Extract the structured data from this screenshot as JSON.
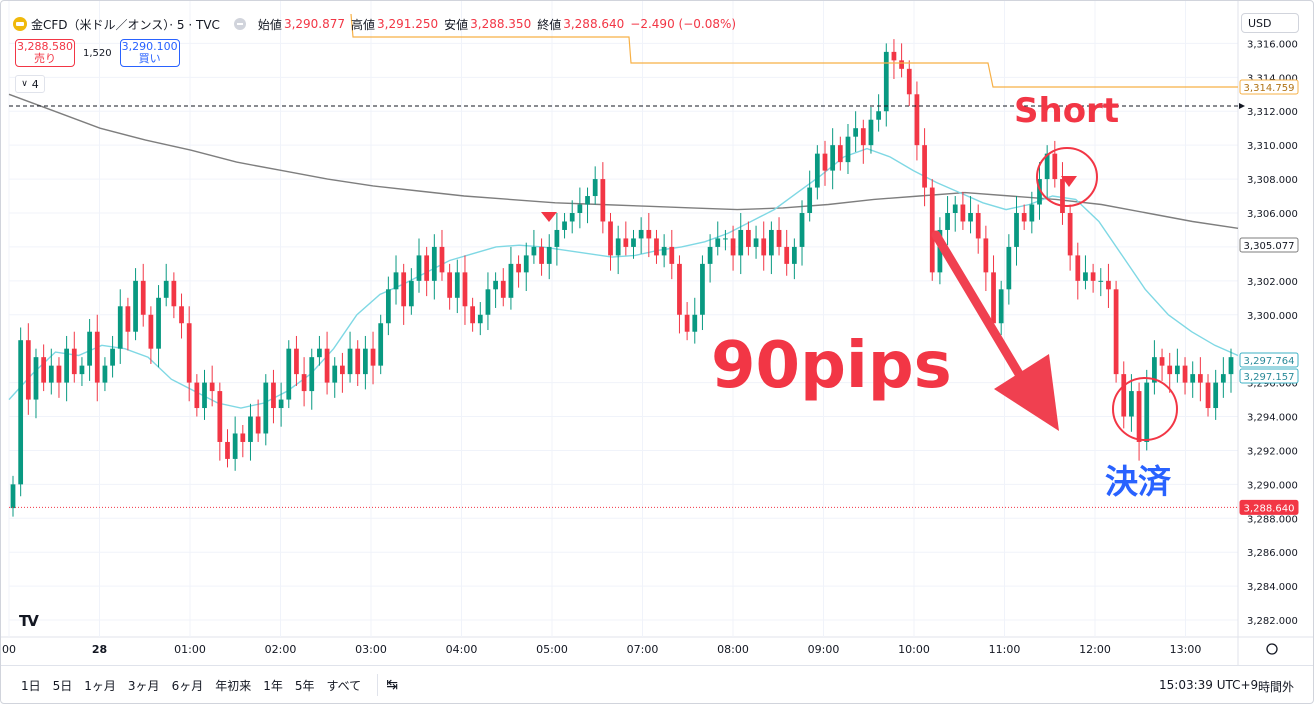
{
  "header": {
    "symbol": "金CFD（米ドル／オンス）· 5 · TVC",
    "open_label": "始値",
    "open": "3,290.877",
    "high_label": "高値",
    "high": "3,291.250",
    "low_label": "安値",
    "low": "3,288.350",
    "close_label": "終値",
    "close": "3,288.640",
    "change": "−2.490 (−0.08%)"
  },
  "trade": {
    "sell_price": "3,288.580",
    "sell_label": "売り",
    "spread": "1,520",
    "buy_price": "3,290.100",
    "buy_label": "買い"
  },
  "indicator_count": "4",
  "currency": "USD",
  "colors": {
    "up": "#089981",
    "down": "#f23645",
    "ema": "#7fd8e4",
    "sma": "#7e7e7e",
    "level": "#f7b046"
  },
  "price_axis": {
    "ticks": [
      "3,316.000",
      "3,314.000",
      "3,312.000",
      "3,310.000",
      "3,308.000",
      "3,306.000",
      "3,304.000",
      "3,302.000",
      "3,300.000",
      "3,296.000",
      "3,294.000",
      "3,292.000",
      "3,290.000",
      "3,288.000",
      "3,286.000",
      "3,284.000",
      "3,282.000"
    ],
    "labels": {
      "orange": "3,314.759",
      "gray": "3,305.077",
      "teal1": "3,297.764",
      "teal2": "3,297.157",
      "price": "3,288.640"
    }
  },
  "time_axis": [
    "00",
    "28",
    "01:00",
    "02:00",
    "03:00",
    "04:00",
    "05:00",
    "07:00",
    "08:00",
    "09:00",
    "10:00",
    "11:00",
    "12:00",
    "13:00"
  ],
  "annotations": {
    "short": "Short",
    "pips": "90pips",
    "settle": "決済"
  },
  "bottom": {
    "ranges": [
      "1日",
      "5日",
      "1ヶ月",
      "3ヶ月",
      "6ヶ月",
      "年初来",
      "1年",
      "5年",
      "すべて"
    ],
    "clock": "15:03:39 UTC+9",
    "session": "時間外"
  },
  "chart_data": {
    "type": "candlestick",
    "ylim": [
      3281,
      3318.5
    ],
    "series": [
      {
        "name": "price",
        "values": [
          3290,
          3298.5,
          3295,
          3297.5,
          3296,
          3297,
          3296,
          3298,
          3296.5,
          3297,
          3299,
          3296,
          3297,
          3298,
          3300.5,
          3299,
          3302,
          3300,
          3298,
          3301,
          3302,
          3300.5,
          3299.5,
          3296,
          3294.5,
          3296,
          3295.5,
          3292.5,
          3291.5,
          3293,
          3292.5,
          3294,
          3293,
          3296,
          3294.5,
          3295,
          3298,
          3296.5,
          3295.5,
          3297.5,
          3298,
          3296,
          3297,
          3296.5,
          3298,
          3296.5,
          3298,
          3297,
          3299.5,
          3301.5,
          3302.5,
          3300.5,
          3302,
          3303.5,
          3302,
          3304,
          3302.5,
          3301,
          3302.5,
          3300.5,
          3299.5,
          3300,
          3301.5,
          3302,
          3301,
          3303,
          3302.5,
          3303.5,
          3304,
          3303,
          3304,
          3305,
          3305.5,
          3306,
          3306.5,
          3307,
          3308,
          3305.5,
          3303.5,
          3304.5,
          3304,
          3304.5,
          3305,
          3304.5,
          3303.5,
          3304,
          3303,
          3300,
          3299,
          3300,
          3303,
          3304,
          3304.5,
          3304.5,
          3303.5,
          3305,
          3304,
          3304.5,
          3303.5,
          3305,
          3304,
          3303,
          3304,
          3306,
          3307.5,
          3309.5,
          3308.5,
          3310,
          3309,
          3310.5,
          3311,
          3310,
          3311.5,
          3312,
          3315.5,
          3315,
          3314.5,
          3313,
          3310,
          3307.5,
          3302.5,
          3305,
          3306,
          3306.5,
          3305.5,
          3306,
          3304.5,
          3302.5,
          3299.5,
          3301.5,
          3304,
          3306,
          3305.5,
          3306.5,
          3308,
          3309.5,
          3308,
          3306,
          3303.5,
          3302,
          3302.5,
          3302,
          3302,
          3301.5,
          3296.5,
          3294,
          3295.5,
          3292.5,
          3296,
          3297.5,
          3297,
          3296.5,
          3297,
          3296,
          3296.5,
          3296,
          3294.5,
          3296,
          3296.5,
          3297.5
        ]
      },
      {
        "name": "EMA",
        "values": [
          3295,
          3296.5,
          3297.8,
          3297.6,
          3298.2,
          3298,
          3297.5,
          3296.2,
          3295.5,
          3294.8,
          3294.5,
          3294.8,
          3295.5,
          3296.5,
          3298,
          3300,
          3301.2,
          3301.8,
          3302.5,
          3303.2,
          3303.6,
          3304,
          3304.1,
          3304,
          3303.8,
          3303.6,
          3303.4,
          3303.5,
          3303.8,
          3304,
          3304.3,
          3304.8,
          3305.5,
          3306.2,
          3307.2,
          3308.2,
          3309.3,
          3309.8,
          3309.3,
          3308.5,
          3307.8,
          3307.2,
          3306.6,
          3306.2,
          3306.5,
          3307,
          3306.8,
          3305.5,
          3303.5,
          3301.5,
          3300,
          3299,
          3298.2,
          3297.6
        ]
      },
      {
        "name": "SMA",
        "values": [
          3313,
          3312,
          3311,
          3310.3,
          3309.7,
          3309,
          3308.5,
          3308,
          3307.6,
          3307.3,
          3307,
          3306.8,
          3306.6,
          3306.5,
          3306.4,
          3306.3,
          3306.2,
          3306.3,
          3306.5,
          3306.8,
          3307,
          3307.2,
          3307,
          3306.8,
          3306.5,
          3306,
          3305.5,
          3305.1
        ]
      }
    ]
  }
}
